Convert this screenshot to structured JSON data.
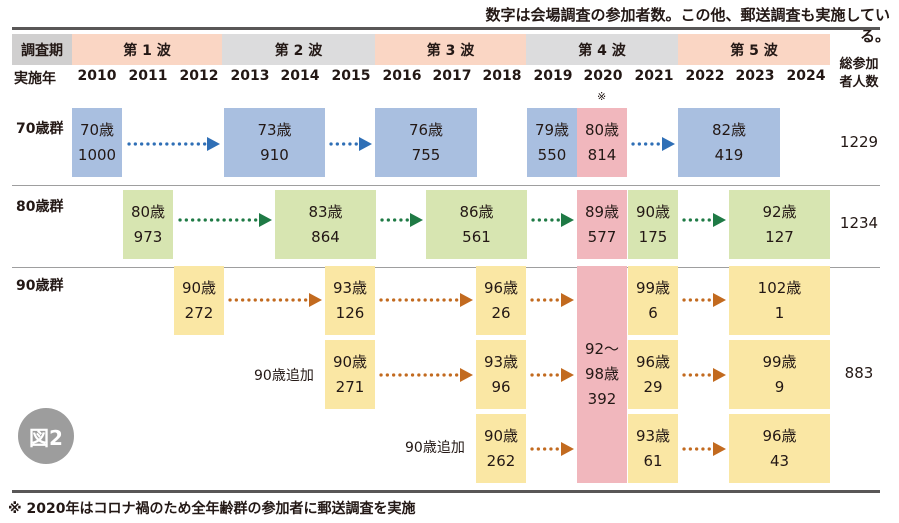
{
  "note_top": "数字は会場調査の参加者数。この他、郵送調査も実施している。",
  "header": {
    "period_label": "調査期",
    "year_label": "実施年",
    "waves": [
      "第 1 波",
      "第 2 波",
      "第 3 波",
      "第 4 波",
      "第 5 波"
    ],
    "years": [
      "2010",
      "2011",
      "2012",
      "2013",
      "2014",
      "2015",
      "2016",
      "2017",
      "2018",
      "2019",
      "2020",
      "2021",
      "2022",
      "2023",
      "2024"
    ],
    "year_note_mark": "※",
    "total_label_1": "総参加",
    "total_label_2": "者人数"
  },
  "groups": {
    "g70": {
      "label": "70歳群",
      "total": "1229",
      "cells": [
        {
          "age": "70歳",
          "n": "1000"
        },
        {
          "age": "73歳",
          "n": "910"
        },
        {
          "age": "76歳",
          "n": "755"
        },
        {
          "age": "79歳",
          "n": "550"
        },
        {
          "age": "80歳",
          "n": "814"
        },
        {
          "age": "82歳",
          "n": "419"
        }
      ]
    },
    "g80": {
      "label": "80歳群",
      "total": "1234",
      "cells": [
        {
          "age": "80歳",
          "n": "973"
        },
        {
          "age": "83歳",
          "n": "864"
        },
        {
          "age": "86歳",
          "n": "561"
        },
        {
          "age": "89歳",
          "n": "577"
        },
        {
          "age": "90歳",
          "n": "175"
        },
        {
          "age": "92歳",
          "n": "127"
        }
      ]
    },
    "g90": {
      "label": "90歳群",
      "total": "883",
      "row1": [
        {
          "age": "90歳",
          "n": "272"
        },
        {
          "age": "93歳",
          "n": "126"
        },
        {
          "age": "96歳",
          "n": "26"
        },
        {
          "age": "99歳",
          "n": "6"
        },
        {
          "age": "102歳",
          "n": "1"
        }
      ],
      "add1_label": "90歳追加",
      "row2": [
        {
          "age": "90歳",
          "n": "271"
        },
        {
          "age": "93歳",
          "n": "96"
        },
        {
          "age": "96歳",
          "n": "29"
        },
        {
          "age": "99歳",
          "n": "9"
        }
      ],
      "add2_label": "90歳追加",
      "row3": [
        {
          "age": "90歳",
          "n": "262"
        },
        {
          "age": "93歳",
          "n": "61"
        },
        {
          "age": "96歳",
          "n": "43"
        }
      ],
      "merged": {
        "age": "92〜",
        "age2": "98歳",
        "n": "392"
      }
    }
  },
  "figure_label": "図2",
  "note_bottom": "※ 2020年はコロナ禍のため全年齢群の参加者に郵送調査を実施",
  "colors": {
    "blue_arrow": "#2f6fb6",
    "green_arrow": "#1f7a45",
    "orange_arrow": "#c26a1f"
  }
}
